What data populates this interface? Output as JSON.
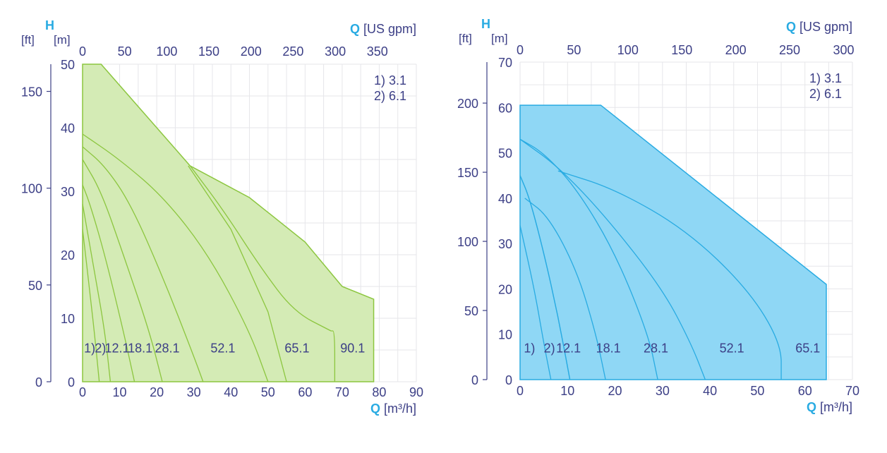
{
  "chart_data": [
    {
      "type": "area",
      "color": "#8cc63f",
      "fill": "#d4ebb5",
      "axes": {
        "y_letter": "H",
        "y_unit_ft": "[ft]",
        "y_unit_m": "[m]",
        "x_top_letter": "Q",
        "x_top_unit": "[US gpm]",
        "x_bottom_letter": "Q",
        "x_bottom_unit": "[m³/h]"
      },
      "xlim": [
        0,
        90
      ],
      "ylim": [
        0,
        50
      ],
      "x_ticks": [
        "0",
        "10",
        "20",
        "30",
        "40",
        "50",
        "60",
        "70",
        "80",
        "90"
      ],
      "y_ticks_m": [
        "0",
        "10",
        "20",
        "30",
        "40",
        "50"
      ],
      "y_ticks_ft": [
        {
          "v": 0,
          "label": "0"
        },
        {
          "v": 50,
          "label": "50"
        },
        {
          "v": 100,
          "label": "100"
        },
        {
          "v": 150,
          "label": "150"
        }
      ],
      "gpm_ticks": [
        {
          "v": 0,
          "label": "0"
        },
        {
          "v": 50,
          "label": "50"
        },
        {
          "v": 100,
          "label": "100"
        },
        {
          "v": 150,
          "label": "150"
        },
        {
          "v": 200,
          "label": "200"
        },
        {
          "v": 250,
          "label": "250"
        },
        {
          "v": 300,
          "label": "300"
        },
        {
          "v": 350,
          "label": "350"
        }
      ],
      "legend": [
        "1) 3.1",
        "2) 6.1"
      ],
      "envelope": [
        [
          0,
          50
        ],
        [
          5,
          50
        ],
        [
          29,
          34
        ],
        [
          45,
          29
        ],
        [
          60,
          22
        ],
        [
          70,
          15
        ],
        [
          78.5,
          13
        ],
        [
          78.5,
          0
        ],
        [
          0,
          0
        ]
      ],
      "series": [
        {
          "name": "1)",
          "points": [
            [
              0,
              24
            ],
            [
              2,
              14
            ],
            [
              3.5,
              6
            ],
            [
              4.5,
              0
            ]
          ],
          "label_at": [
            0.4,
            4.6
          ]
        },
        {
          "name": "2)",
          "points": [
            [
              0,
              28
            ],
            [
              3,
              18
            ],
            [
              6,
              8
            ],
            [
              7.5,
              0
            ]
          ],
          "label_at": [
            3.3,
            4.6
          ]
        },
        {
          "name": "12.1",
          "points": [
            [
              0,
              31
            ],
            [
              2,
              28
            ],
            [
              6,
              20
            ],
            [
              11,
              8
            ],
            [
              14,
              0
            ]
          ],
          "label_at": [
            6.0,
            4.6
          ]
        },
        {
          "name": "18.1",
          "points": [
            [
              0,
              35
            ],
            [
              5,
              30
            ],
            [
              11,
              20
            ],
            [
              18,
              8
            ],
            [
              21.5,
              0
            ]
          ],
          "label_at": [
            12.2,
            4.6
          ]
        },
        {
          "name": "28.1",
          "points": [
            [
              0,
              37
            ],
            [
              6,
              34
            ],
            [
              13,
              28
            ],
            [
              22,
              16
            ],
            [
              30,
              4
            ],
            [
              32.5,
              0
            ]
          ],
          "label_at": [
            19.5,
            4.6
          ]
        },
        {
          "name": "52.1",
          "points": [
            [
              0,
              39
            ],
            [
              10,
              35
            ],
            [
              22,
              29
            ],
            [
              34,
              20
            ],
            [
              45,
              8
            ],
            [
              50,
              0
            ]
          ],
          "label_at": [
            34.5,
            4.6
          ]
        },
        {
          "name": "65.1",
          "points": [
            [
              29,
              34
            ],
            [
              38,
              27
            ],
            [
              48,
              18
            ],
            [
              57,
              11
            ],
            [
              67,
              8
            ]
          ],
          "label_at": [
            54.5,
            4.6
          ]
        },
        {
          "name": "90.1",
          "points": [
            [
              67,
              8
            ],
            [
              68,
              8
            ],
            [
              68,
              0
            ]
          ],
          "label_at": [
            69.5,
            4.6
          ]
        }
      ],
      "extra_line": [
        [
          28.5,
          34
        ],
        [
          40,
          24
        ],
        [
          50,
          11
        ],
        [
          55,
          0
        ]
      ]
    },
    {
      "type": "area",
      "color": "#29abe2",
      "fill": "#8fd7f5",
      "axes": {
        "y_letter": "H",
        "y_unit_ft": "[ft]",
        "y_unit_m": "[m]",
        "x_top_letter": "Q",
        "x_top_unit": "[US gpm]",
        "x_bottom_letter": "Q",
        "x_bottom_unit": "[m³/h]"
      },
      "xlim": [
        0,
        70
      ],
      "ylim": [
        0,
        70
      ],
      "x_ticks": [
        "0",
        "10",
        "20",
        "30",
        "40",
        "50",
        "60",
        "70"
      ],
      "y_ticks_m": [
        "0",
        "10",
        "20",
        "30",
        "40",
        "50",
        "60",
        "70"
      ],
      "y_ticks_ft": [
        {
          "v": 0,
          "label": "0"
        },
        {
          "v": 50,
          "label": "50"
        },
        {
          "v": 100,
          "label": "100"
        },
        {
          "v": 150,
          "label": "150"
        },
        {
          "v": 200,
          "label": "200"
        }
      ],
      "gpm_ticks": [
        {
          "v": 0,
          "label": "0"
        },
        {
          "v": 50,
          "label": "50"
        },
        {
          "v": 100,
          "label": "100"
        },
        {
          "v": 150,
          "label": "150"
        },
        {
          "v": 200,
          "label": "200"
        },
        {
          "v": 250,
          "label": "250"
        },
        {
          "v": 300,
          "label": "300"
        }
      ],
      "legend": [
        "1) 3.1",
        "2) 6.1"
      ],
      "envelope": [
        [
          0,
          60.5
        ],
        [
          17,
          60.5
        ],
        [
          64.5,
          21
        ],
        [
          64.5,
          0
        ],
        [
          0,
          0
        ]
      ],
      "series": [
        {
          "name": "1)",
          "points": [
            [
              0,
              34
            ],
            [
              3,
              20
            ],
            [
              5,
              8
            ],
            [
              6.5,
              0
            ]
          ],
          "label_at": [
            0.8,
            6
          ]
        },
        {
          "name": "2)",
          "points": [
            [
              0,
              45
            ],
            [
              2,
              40
            ],
            [
              5,
              28
            ],
            [
              8,
              14
            ],
            [
              10.5,
              0
            ]
          ],
          "label_at": [
            5,
            6
          ]
        },
        {
          "name": "12.1",
          "points": [
            [
              0,
              45
            ],
            [
              2,
              40
            ],
            [
              5,
              28
            ],
            [
              8,
              14
            ],
            [
              10.5,
              0
            ]
          ],
          "label_at": [
            7.6,
            6
          ]
        },
        {
          "name": "18.1",
          "points": [
            [
              1,
              40
            ],
            [
              6,
              36
            ],
            [
              12,
              24
            ],
            [
              16,
              10
            ],
            [
              18,
              0
            ]
          ],
          "label_at": [
            16,
            6
          ]
        },
        {
          "name": "28.1",
          "points": [
            [
              0,
              53
            ],
            [
              5,
              50
            ],
            [
              12,
              42
            ],
            [
              20,
              28
            ],
            [
              27,
              10
            ],
            [
              29,
              0
            ]
          ],
          "label_at": [
            26,
            6
          ]
        },
        {
          "name": "52.1",
          "points": [
            [
              0,
              53
            ],
            [
              8,
              47
            ],
            [
              18,
              36
            ],
            [
              30,
              20
            ],
            [
              36,
              8
            ],
            [
              39,
              0
            ]
          ],
          "label_at": [
            42,
            6
          ]
        },
        {
          "name": "65.1",
          "points": [
            [
              8,
              46
            ],
            [
              20,
              42
            ],
            [
              35,
              33
            ],
            [
              48,
              20
            ],
            [
              55,
              8
            ],
            [
              55,
              0
            ]
          ],
          "label_at": [
            58,
            6
          ]
        }
      ]
    }
  ]
}
